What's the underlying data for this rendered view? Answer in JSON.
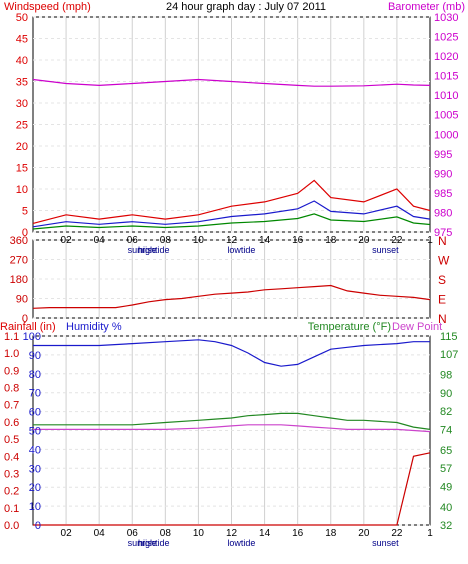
{
  "header": {
    "title": "24 hour graph day : July 07 2011",
    "left_label": "Windspeed (mph)",
    "right_label": "Barometer (mb)"
  },
  "x_axis": {
    "hours": [
      "02",
      "04",
      "06",
      "08",
      "10",
      "12",
      "14",
      "16",
      "18",
      "20",
      "22",
      "1"
    ],
    "events": [
      {
        "label": "sunrise",
        "hour": 6.6
      },
      {
        "label": "hightide",
        "hour": 7.3
      },
      {
        "label": "lowtide",
        "hour": 12.6
      },
      {
        "label": "sunset",
        "hour": 21.3
      }
    ]
  },
  "panel2": {
    "compass": [
      "N",
      "W",
      "S",
      "E",
      "N"
    ]
  },
  "panel3": {
    "rain_label": "Rainfall (in)",
    "humidity_label": "Humidity %",
    "temp_label": "Temperature (°F)",
    "dew_label": "Dew Point"
  },
  "colors": {
    "wind": "#dd0000",
    "avg_wind": "#1a1acc",
    "gust": "#008800",
    "barometer": "#cc00cc",
    "humidity": "#1a1acc",
    "temperature": "#228822",
    "dewpoint": "#cc44cc",
    "rain": "#cc0000",
    "winddir": "#cc0000"
  },
  "chart_data": [
    {
      "type": "line",
      "title": "24 hour graph day : July 07 2011",
      "x": [
        0,
        2,
        4,
        6,
        8,
        10,
        12,
        14,
        16,
        17,
        18,
        20,
        22,
        23,
        24
      ],
      "y_left": {
        "label": "Windspeed (mph)",
        "ticks": [
          0,
          5,
          10,
          15,
          20,
          25,
          30,
          35,
          40,
          45,
          50
        ],
        "range": [
          0,
          50
        ]
      },
      "y_right": {
        "label": "Barometer (mb)",
        "ticks": [
          975,
          980,
          985,
          990,
          995,
          1000,
          1005,
          1010,
          1015,
          1020,
          1025,
          1030
        ],
        "range": [
          975,
          1030
        ]
      },
      "series": [
        {
          "name": "Windspeed (mph)",
          "values": [
            2,
            4,
            3,
            4,
            3,
            4,
            6,
            7,
            9,
            12,
            8,
            7,
            10,
            6,
            5
          ]
        },
        {
          "name": "Barometer (mb)",
          "values": [
            1014,
            1013,
            1012.5,
            1013,
            1013.5,
            1014,
            1013.5,
            1013,
            1012.5,
            1012.3,
            1012.3,
            1012.4,
            1012.8,
            1012.6,
            1012.5
          ]
        }
      ]
    },
    {
      "type": "line",
      "x": [
        0,
        1,
        2,
        3,
        4,
        5,
        6,
        7,
        8,
        9,
        10,
        11,
        12,
        13,
        14,
        15,
        16,
        17,
        18,
        19,
        20,
        21,
        22,
        23,
        24
      ],
      "y_left": {
        "ticks": [
          0,
          90,
          180,
          270,
          360
        ],
        "range": [
          0,
          360
        ]
      },
      "series": [
        {
          "name": "",
          "values": [
            45,
            48,
            48,
            48,
            48,
            48,
            60,
            75,
            85,
            90,
            100,
            110,
            115,
            120,
            130,
            135,
            140,
            145,
            150,
            125,
            115,
            105,
            100,
            95,
            85
          ]
        }
      ]
    },
    {
      "type": "line",
      "x": [
        0,
        2,
        4,
        6,
        8,
        10,
        11,
        12,
        13,
        14,
        15,
        16,
        17,
        18,
        19,
        20,
        22,
        23,
        24
      ],
      "y_left": {
        "label": "Humidity %",
        "ticks": [
          0,
          10,
          20,
          30,
          40,
          50,
          60,
          70,
          80,
          90,
          100
        ],
        "range": [
          0,
          100
        ]
      },
      "y_rain": {
        "label": "Rainfall (in)",
        "ticks": [
          0.0,
          0.1,
          0.2,
          0.3,
          0.4,
          0.5,
          0.6,
          0.7,
          0.8,
          0.9,
          1.0,
          1.1
        ],
        "range": [
          0,
          1.1
        ]
      },
      "y_right": {
        "label": "Temperature (°F)",
        "ticks": [
          32,
          40,
          49,
          57,
          65,
          74,
          82,
          90,
          98,
          107,
          115
        ],
        "range": [
          32,
          115
        ]
      },
      "series": [
        {
          "name": "Humidity %",
          "values": [
            95,
            95,
            95,
            96,
            97,
            98,
            97,
            95,
            91,
            86,
            84,
            85,
            89,
            93,
            94,
            95,
            96,
            97,
            97
          ]
        },
        {
          "name": "Temperature (°F)",
          "values": [
            76,
            76,
            76,
            76,
            77,
            78,
            78.5,
            79,
            80,
            80.5,
            81,
            81,
            80,
            79,
            78,
            78,
            77,
            75,
            74
          ]
        },
        {
          "name": "Dew Point",
          "values": [
            74,
            74,
            74,
            74,
            74,
            74.5,
            75,
            75.5,
            76,
            76,
            76,
            75.5,
            75,
            74.5,
            74,
            74,
            74,
            73.5,
            73
          ]
        },
        {
          "name": "Rainfall (in)",
          "values": [
            0,
            0,
            0,
            0,
            0,
            0,
            0,
            0,
            0,
            0,
            0,
            0,
            0,
            0,
            0,
            0,
            0,
            0.4,
            0.42
          ]
        }
      ]
    }
  ]
}
